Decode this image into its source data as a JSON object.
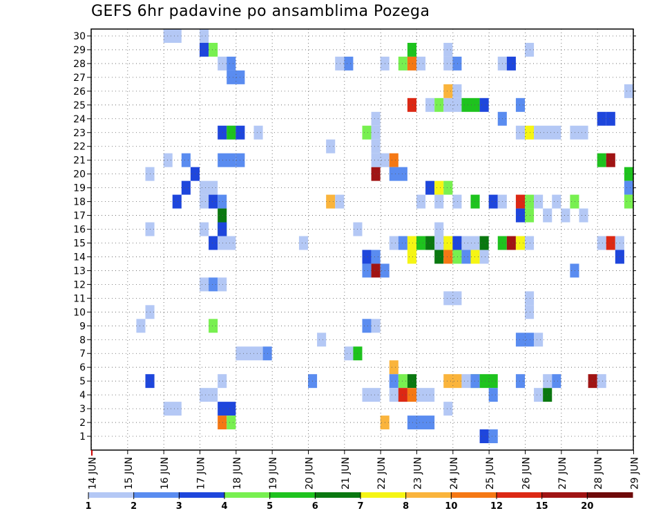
{
  "chart_data": {
    "type": "heatmap",
    "title": "GEFS 6hr padavine po ansamblima Pozega",
    "x_labels": [
      "14 JUN",
      "15 JUN",
      "16 JUN",
      "17 JUN",
      "18 JUN",
      "19 JUN",
      "20 JUN",
      "21 JUN",
      "22 JUN",
      "23 JUN",
      "24 JUN",
      "25 JUN",
      "26 JUN",
      "27 JUN",
      "28 JUN",
      "29 JUN"
    ],
    "x_steps_per_label": 4,
    "x_range_steps": [
      0,
      60
    ],
    "y_ticks": [
      1,
      2,
      3,
      4,
      5,
      6,
      7,
      8,
      9,
      10,
      11,
      12,
      13,
      14,
      15,
      16,
      17,
      18,
      19,
      20,
      21,
      22,
      23,
      24,
      25,
      26,
      27,
      28,
      29,
      30
    ],
    "y_range": [
      0,
      30
    ],
    "grid": true,
    "legend": {
      "placement": "bottom",
      "labels": [
        "1",
        "2",
        "3",
        "4",
        "5",
        "6",
        "7",
        "8",
        "10",
        "12",
        "15",
        "20"
      ],
      "colors": [
        "#b4c8f5",
        "#5a8cf0",
        "#1e46dc",
        "#78f050",
        "#1ec31e",
        "#0a7810",
        "#f5f514",
        "#fab43c",
        "#f57814",
        "#dc2814",
        "#a01414",
        "#6e0a0a"
      ]
    },
    "colors": [
      "#b4c8f5",
      "#5a8cf0",
      "#1e46dc",
      "#78f050",
      "#1ec31e",
      "#0a7810",
      "#f5f514",
      "#fab43c",
      "#f57814",
      "#dc2814",
      "#a01414",
      "#6e0a0a"
    ],
    "cells": [
      [
        8,
        30,
        0,
        2
      ],
      [
        12,
        30,
        0,
        1
      ],
      [
        12,
        29,
        2,
        1
      ],
      [
        13,
        29,
        3,
        1
      ],
      [
        14,
        28,
        0,
        1
      ],
      [
        15,
        28,
        1,
        1
      ],
      [
        15,
        27,
        1,
        2
      ],
      [
        15,
        23,
        0,
        1
      ],
      [
        14,
        23,
        2,
        1
      ],
      [
        15,
        23,
        4,
        1
      ],
      [
        16,
        23,
        2,
        1
      ],
      [
        18,
        23,
        0,
        1
      ],
      [
        14,
        21,
        1,
        2
      ],
      [
        16,
        21,
        1,
        1
      ],
      [
        8,
        21,
        0,
        1
      ],
      [
        10,
        21,
        1,
        1
      ],
      [
        11,
        20,
        2,
        1
      ],
      [
        10,
        19,
        2,
        1
      ],
      [
        12,
        19,
        0,
        2
      ],
      [
        9,
        18,
        2,
        1
      ],
      [
        12,
        18,
        0,
        1
      ],
      [
        13,
        18,
        2,
        1
      ],
      [
        14,
        18,
        1,
        1
      ],
      [
        14,
        17,
        5,
        1
      ],
      [
        14,
        16,
        5,
        1
      ],
      [
        12,
        16,
        0,
        1
      ],
      [
        14,
        16,
        2,
        1
      ],
      [
        13,
        15,
        2,
        1
      ],
      [
        14,
        15,
        0,
        2
      ],
      [
        12,
        12,
        0,
        1
      ],
      [
        13,
        12,
        1,
        1
      ],
      [
        14,
        12,
        0,
        1
      ],
      [
        14,
        5,
        0,
        1
      ],
      [
        13,
        4,
        0,
        1
      ],
      [
        8,
        3,
        0,
        2
      ],
      [
        14,
        3,
        2,
        2
      ],
      [
        14,
        2,
        8,
        1
      ],
      [
        15,
        2,
        3,
        1
      ],
      [
        12,
        4,
        0,
        1
      ],
      [
        13,
        9,
        3,
        1
      ],
      [
        6,
        5,
        2,
        1
      ],
      [
        6,
        10,
        0,
        1
      ],
      [
        6,
        16,
        0,
        1
      ],
      [
        6,
        20,
        0,
        1
      ],
      [
        5,
        9,
        0,
        1
      ],
      [
        16,
        7,
        0,
        3
      ],
      [
        19,
        7,
        1,
        1
      ],
      [
        26,
        18,
        7,
        1
      ],
      [
        27,
        18,
        0,
        1
      ],
      [
        25,
        8,
        0,
        1
      ],
      [
        24,
        5,
        1,
        1
      ],
      [
        23,
        15,
        0,
        1
      ],
      [
        26,
        22,
        0,
        1
      ],
      [
        27,
        28,
        0,
        1
      ],
      [
        28,
        28,
        1,
        1
      ],
      [
        28,
        7,
        0,
        1
      ],
      [
        29,
        7,
        4,
        1
      ],
      [
        29,
        16,
        0,
        1
      ],
      [
        30,
        23,
        3,
        1
      ],
      [
        31,
        23,
        0,
        1
      ],
      [
        31,
        24,
        0,
        1
      ],
      [
        31,
        22,
        0,
        1
      ],
      [
        30,
        14,
        2,
        1
      ],
      [
        31,
        14,
        1,
        1
      ],
      [
        30,
        13,
        1,
        1
      ],
      [
        31,
        13,
        10,
        1
      ],
      [
        32,
        13,
        1,
        1
      ],
      [
        30,
        9,
        1,
        1
      ],
      [
        31,
        9,
        0,
        1
      ],
      [
        30,
        4,
        0,
        2
      ],
      [
        32,
        2,
        7,
        1
      ],
      [
        31,
        20,
        10,
        1
      ],
      [
        31,
        21,
        0,
        2
      ],
      [
        32,
        28,
        0,
        1
      ],
      [
        33,
        21,
        8,
        1
      ],
      [
        33,
        20,
        1,
        2
      ],
      [
        33,
        15,
        0,
        1
      ],
      [
        34,
        15,
        1,
        1
      ],
      [
        35,
        15,
        6,
        1
      ],
      [
        35,
        14,
        6,
        1
      ],
      [
        36,
        15,
        4,
        1
      ],
      [
        37,
        15,
        5,
        1
      ],
      [
        38,
        15,
        4,
        1
      ],
      [
        39,
        15,
        6,
        1
      ],
      [
        40,
        15,
        2,
        1
      ],
      [
        41,
        15,
        0,
        1
      ],
      [
        33,
        6,
        7,
        1
      ],
      [
        33,
        5,
        1,
        1
      ],
      [
        34,
        5,
        3,
        1
      ],
      [
        35,
        5,
        5,
        1
      ],
      [
        33,
        4,
        0,
        2
      ],
      [
        34,
        4,
        9,
        1
      ],
      [
        35,
        4,
        8,
        1
      ],
      [
        36,
        4,
        0,
        2
      ],
      [
        34,
        28,
        3,
        1
      ],
      [
        35,
        28,
        8,
        1
      ],
      [
        36,
        28,
        0,
        1
      ],
      [
        35,
        29,
        4,
        1
      ],
      [
        35,
        25,
        9,
        1
      ],
      [
        37,
        25,
        0,
        1
      ],
      [
        38,
        25,
        3,
        1
      ],
      [
        39,
        25,
        0,
        2
      ],
      [
        41,
        25,
        4,
        2
      ],
      [
        43,
        25,
        2,
        1
      ],
      [
        39,
        29,
        0,
        1
      ],
      [
        39,
        28,
        0,
        1
      ],
      [
        40,
        28,
        1,
        1
      ],
      [
        39,
        26,
        7,
        1
      ],
      [
        40,
        26,
        0,
        1
      ],
      [
        36,
        18,
        0,
        1
      ],
      [
        37,
        19,
        2,
        1
      ],
      [
        38,
        19,
        6,
        1
      ],
      [
        39,
        19,
        3,
        1
      ],
      [
        38,
        18,
        0,
        1
      ],
      [
        38,
        16,
        0,
        1
      ],
      [
        40,
        18,
        0,
        1
      ],
      [
        38,
        15,
        0,
        1
      ],
      [
        38,
        14,
        5,
        1
      ],
      [
        39,
        14,
        8,
        1
      ],
      [
        40,
        14,
        3,
        1
      ],
      [
        41,
        14,
        1,
        1
      ],
      [
        42,
        14,
        6,
        1
      ],
      [
        43,
        14,
        0,
        1
      ],
      [
        39,
        11,
        0,
        2
      ],
      [
        39,
        5,
        7,
        2
      ],
      [
        41,
        5,
        0,
        1
      ],
      [
        42,
        5,
        3,
        1
      ],
      [
        43,
        5,
        4,
        2
      ],
      [
        39,
        3,
        0,
        1
      ],
      [
        35,
        2,
        1,
        3
      ],
      [
        42,
        15,
        0,
        1
      ],
      [
        43,
        15,
        5,
        1
      ],
      [
        45,
        15,
        4,
        1
      ],
      [
        46,
        15,
        10,
        1
      ],
      [
        47,
        15,
        6,
        1
      ],
      [
        48,
        15,
        0,
        1
      ],
      [
        45,
        24,
        1,
        1
      ],
      [
        45,
        28,
        0,
        1
      ],
      [
        46,
        28,
        2,
        1
      ],
      [
        48,
        29,
        0,
        1
      ],
      [
        47,
        25,
        1,
        1
      ],
      [
        42,
        18,
        4,
        1
      ],
      [
        44,
        18,
        2,
        1
      ],
      [
        45,
        18,
        0,
        1
      ],
      [
        47,
        18,
        9,
        1
      ],
      [
        48,
        18,
        3,
        1
      ],
      [
        49,
        18,
        0,
        1
      ],
      [
        51,
        18,
        0,
        1
      ],
      [
        53,
        18,
        3,
        1
      ],
      [
        47,
        17,
        2,
        1
      ],
      [
        48,
        17,
        3,
        1
      ],
      [
        50,
        17,
        0,
        1
      ],
      [
        52,
        17,
        0,
        1
      ],
      [
        54,
        17,
        0,
        1
      ],
      [
        47,
        23,
        0,
        1
      ],
      [
        48,
        23,
        6,
        1
      ],
      [
        49,
        23,
        0,
        3
      ],
      [
        53,
        23,
        0,
        2
      ],
      [
        43,
        1,
        2,
        1
      ],
      [
        44,
        1,
        1,
        1
      ],
      [
        42,
        5,
        1,
        1
      ],
      [
        44,
        4,
        1,
        1
      ],
      [
        47,
        5,
        1,
        1
      ],
      [
        48,
        10,
        0,
        1
      ],
      [
        47,
        8,
        1,
        2
      ],
      [
        49,
        8,
        0,
        1
      ],
      [
        49,
        4,
        0,
        1
      ],
      [
        50,
        4,
        5,
        1
      ],
      [
        48,
        11,
        0,
        1
      ],
      [
        50,
        5,
        0,
        1
      ],
      [
        51,
        5,
        1,
        1
      ],
      [
        55,
        5,
        10,
        1
      ],
      [
        56,
        5,
        0,
        1
      ],
      [
        56,
        24,
        2,
        1
      ],
      [
        57,
        24,
        2,
        1
      ],
      [
        53,
        13,
        1,
        1
      ],
      [
        56,
        21,
        4,
        1
      ],
      [
        57,
        21,
        10,
        1
      ],
      [
        59,
        20,
        4,
        1
      ],
      [
        59,
        19,
        1,
        1
      ],
      [
        59,
        18,
        3,
        1
      ],
      [
        56,
        15,
        0,
        1
      ],
      [
        57,
        15,
        9,
        1
      ],
      [
        58,
        15,
        0,
        1
      ],
      [
        59,
        26,
        0,
        1
      ],
      [
        58,
        14,
        2,
        1
      ]
    ]
  }
}
